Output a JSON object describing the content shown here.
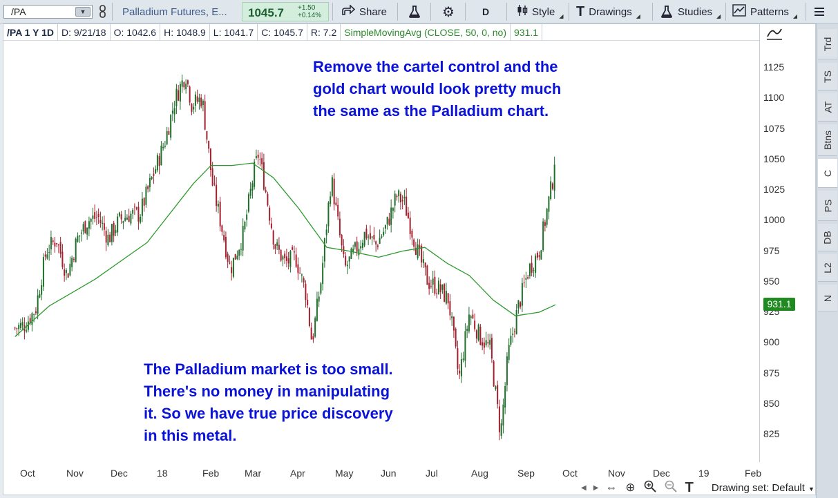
{
  "toolbar": {
    "symbol": "/PA",
    "description": "Palladium Futures, E...",
    "last_price": "1045.7",
    "change": "+1.50",
    "change_pct": "+0.14%",
    "period": "D",
    "share_label": "Share",
    "style_label": "Style",
    "drawings_label": "Drawings",
    "studies_label": "Studies",
    "patterns_label": "Patterns"
  },
  "info": {
    "symbol_period": "/PA 1 Y 1D",
    "date": "D: 9/21/18",
    "open": "O: 1042.6",
    "high": "H: 1048.9",
    "low": "L: 1041.7",
    "close": "C: 1045.7",
    "range": "R: 7.2",
    "study": "SimpleMovingAvg (CLOSE, 50, 0, no)",
    "study_value": "931.1"
  },
  "annotations": {
    "top": "Remove the cartel control and the\ngold chart would look pretty much\nthe same as the Palladium chart.",
    "bottom": "The Palladium market is too small.\nThere's no money in manipulating\nit. So we have true price discovery\nin this metal."
  },
  "bottom_bar": {
    "drawing_set": "Drawing set: Default"
  },
  "side_tabs": [
    "Trd",
    "TS",
    "AT",
    "Btns",
    "C",
    "PS",
    "DB",
    "L2",
    "N"
  ],
  "colors": {
    "up_candle": "#1f6e2a",
    "down_candle": "#a3202e",
    "sma": "#2e9a2e",
    "annotation": "#0b13d6"
  },
  "chart_data": {
    "type": "candlestick",
    "y_ticks": [
      "1125",
      "1100",
      "1075",
      "1050",
      "1025",
      "1000",
      "975",
      "950",
      "925",
      "900",
      "875",
      "850",
      "825"
    ],
    "x_ticks": [
      "Oct",
      "Nov",
      "Dec",
      "18",
      "Feb",
      "Mar",
      "Apr",
      "May",
      "Jun",
      "Jul",
      "Aug",
      "Sep",
      "Oct",
      "Nov",
      "Dec",
      "19",
      "Feb"
    ],
    "last_close": 1045.7,
    "sma_last": 931.1,
    "close_path": [
      [
        "2017-09-22",
        912
      ],
      [
        "2017-09-29",
        915
      ],
      [
        "2017-10-06",
        928
      ],
      [
        "2017-10-13",
        975
      ],
      [
        "2017-10-20",
        985
      ],
      [
        "2017-10-27",
        955
      ],
      [
        "2017-11-03",
        985
      ],
      [
        "2017-11-10",
        1000
      ],
      [
        "2017-11-17",
        1003
      ],
      [
        "2017-11-24",
        985
      ],
      [
        "2017-12-01",
        1000
      ],
      [
        "2017-12-08",
        1005
      ],
      [
        "2017-12-15",
        1005
      ],
      [
        "2017-12-22",
        1030
      ],
      [
        "2018-01-01",
        1065
      ],
      [
        "2018-01-08",
        1100
      ],
      [
        "2018-01-15",
        1120
      ],
      [
        "2018-01-19",
        1095
      ],
      [
        "2018-01-26",
        1100
      ],
      [
        "2018-02-02",
        1030
      ],
      [
        "2018-02-09",
        990
      ],
      [
        "2018-02-14",
        960
      ],
      [
        "2018-02-23",
        990
      ],
      [
        "2018-03-02",
        1040
      ],
      [
        "2018-03-05",
        1055
      ],
      [
        "2018-03-09",
        1030
      ],
      [
        "2018-03-16",
        980
      ],
      [
        "2018-03-23",
        965
      ],
      [
        "2018-03-30",
        970
      ],
      [
        "2018-04-06",
        940
      ],
      [
        "2018-04-10",
        900
      ],
      [
        "2018-04-16",
        950
      ],
      [
        "2018-04-23",
        1035
      ],
      [
        "2018-04-26",
        1010
      ],
      [
        "2018-05-02",
        960
      ],
      [
        "2018-05-09",
        975
      ],
      [
        "2018-05-16",
        990
      ],
      [
        "2018-05-23",
        980
      ],
      [
        "2018-05-30",
        995
      ],
      [
        "2018-06-06",
        1020
      ],
      [
        "2018-06-11",
        1015
      ],
      [
        "2018-06-20",
        975
      ],
      [
        "2018-06-27",
        950
      ],
      [
        "2018-07-04",
        945
      ],
      [
        "2018-07-11",
        935
      ],
      [
        "2018-07-18",
        870
      ],
      [
        "2018-07-25",
        925
      ],
      [
        "2018-08-01",
        905
      ],
      [
        "2018-08-08",
        895
      ],
      [
        "2018-08-15",
        825
      ],
      [
        "2018-08-20",
        890
      ],
      [
        "2018-08-27",
        930
      ],
      [
        "2018-09-03",
        960
      ],
      [
        "2018-09-10",
        975
      ],
      [
        "2018-09-14",
        1000
      ],
      [
        "2018-09-21",
        1045.7
      ]
    ],
    "sma_path": [
      [
        "2017-09-22",
        905
      ],
      [
        "2017-10-15",
        930
      ],
      [
        "2017-11-15",
        952
      ],
      [
        "2017-12-20",
        982
      ],
      [
        "2018-01-20",
        1030
      ],
      [
        "2018-02-01",
        1045
      ],
      [
        "2018-02-15",
        1045
      ],
      [
        "2018-03-01",
        1047
      ],
      [
        "2018-03-15",
        1035
      ],
      [
        "2018-04-01",
        1010
      ],
      [
        "2018-04-20",
        978
      ],
      [
        "2018-05-05",
        975
      ],
      [
        "2018-05-25",
        970
      ],
      [
        "2018-06-10",
        975
      ],
      [
        "2018-06-25",
        978
      ],
      [
        "2018-07-10",
        965
      ],
      [
        "2018-07-25",
        955
      ],
      [
        "2018-08-10",
        935
      ],
      [
        "2018-08-25",
        922
      ],
      [
        "2018-09-10",
        925
      ],
      [
        "2018-09-21",
        931.1
      ]
    ]
  }
}
